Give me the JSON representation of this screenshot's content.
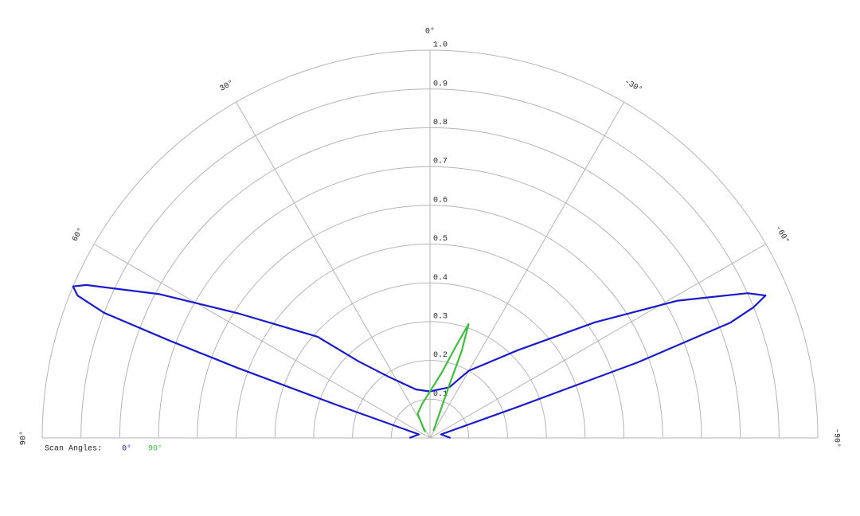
{
  "chart_data": {
    "type": "polar",
    "legend_title": "Scan Angles:",
    "rlim": [
      0,
      1
    ],
    "thetalim": [
      -90,
      90
    ],
    "rticks": [
      0.1,
      0.2,
      0.3,
      0.4,
      0.5,
      0.6,
      0.7,
      0.8,
      0.9,
      {
        "value": 1,
        "label": "1.0"
      }
    ],
    "thetaticks": [
      {
        "value": 90,
        "label": "90°"
      },
      {
        "value": 60,
        "label": "60°"
      },
      {
        "value": 30,
        "label": "30°"
      },
      {
        "value": 0,
        "label": "0°"
      },
      {
        "value": -30,
        "label": "-30°"
      },
      {
        "value": -60,
        "label": "-60°"
      },
      {
        "value": -90,
        "label": "-90°"
      }
    ],
    "grid": true,
    "series": [
      {
        "name": "0°",
        "color": "#1a1acd",
        "theta": [
          90,
          72,
          70.5,
          70,
          69.5,
          69,
          68,
          67,
          66,
          62,
          57,
          48,
          43,
          34,
          16,
          0,
          -21,
          -30,
          -45,
          -55,
          -61,
          -65.5,
          -67,
          -68,
          -69,
          -70,
          -70.5,
          -72,
          -90
        ],
        "r": [
          0.053,
          0.03,
          0.25,
          0.53,
          0.72,
          0.9,
          0.98,
          1.0,
          0.97,
          0.79,
          0.59,
          0.39,
          0.27,
          0.19,
          0.13,
          0.12,
          0.14,
          0.2,
          0.32,
          0.52,
          0.73,
          0.9,
          0.94,
          0.9,
          0.83,
          0.57,
          0.24,
          0.03,
          0.053
        ]
      },
      {
        "name": "90°",
        "color": "#3cc03c",
        "theta": [
          40,
          27,
          13,
          0,
          -10,
          -16,
          -18.7,
          -20,
          -20,
          -26
        ],
        "r": [
          0.02,
          0.07,
          0.09,
          0.12,
          0.17,
          0.25,
          0.31,
          0.24,
          0.15,
          0.02
        ]
      }
    ]
  }
}
